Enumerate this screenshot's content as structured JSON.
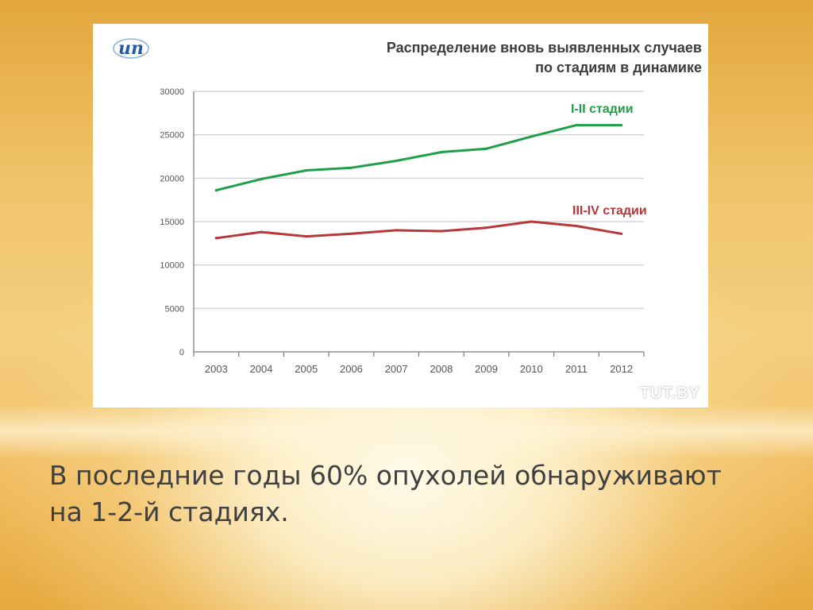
{
  "slide": {
    "caption_line1": "В последние годы 60% опухолей обнаруживают",
    "caption_line2": "на 1-2-й стадиях."
  },
  "panel": {
    "logo_text": "ип",
    "watermark": "TUT.BY"
  },
  "chart_data": {
    "type": "line",
    "title_line1": "Распределение вновь выявленных случаев",
    "title_line2": "по стадиям в динамике",
    "categories": [
      "2003",
      "2004",
      "2005",
      "2006",
      "2007",
      "2008",
      "2009",
      "2010",
      "2011",
      "2012"
    ],
    "yticks": [
      "0",
      "5000",
      "10000",
      "15000",
      "20000",
      "25000",
      "30000"
    ],
    "ylim": [
      0,
      30000
    ],
    "grid": true,
    "series": [
      {
        "name": "I-II стадии",
        "color": "#1fa048",
        "values": [
          18600,
          19900,
          20900,
          21200,
          22000,
          23000,
          23400,
          24800,
          26100,
          26100
        ]
      },
      {
        "name": "III-IV стадии",
        "color": "#b8373a",
        "values": [
          13100,
          13800,
          13300,
          13600,
          14000,
          13900,
          14300,
          15000,
          14500,
          13600
        ]
      }
    ]
  },
  "colors": {
    "title": "#3d3d3d",
    "grid": "#c9c9c9",
    "axis": "#7a7a7a",
    "tick_text": "#555555"
  }
}
